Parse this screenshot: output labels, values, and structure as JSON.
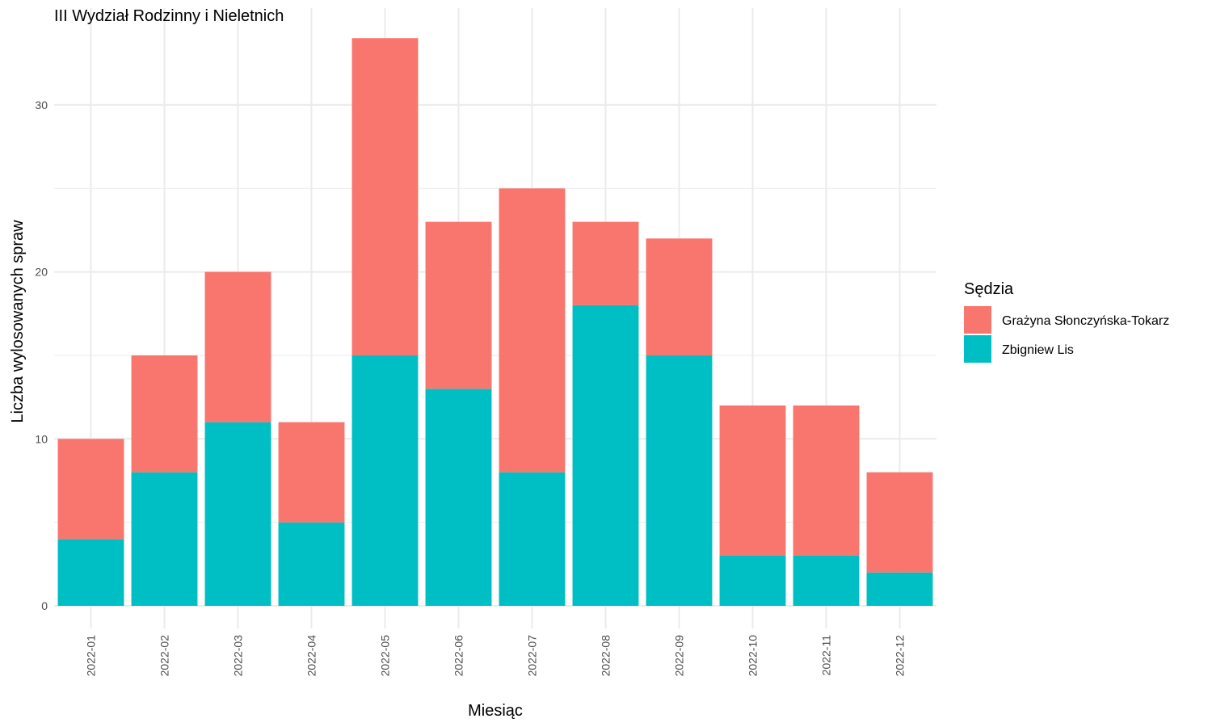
{
  "chart_data": {
    "type": "bar",
    "stacked": true,
    "title": "III Wydział Rodzinny i Nieletnich",
    "xlabel": "Miesiąc",
    "ylabel": "Liczba wylosowanych spraw",
    "categories": [
      "2022-01",
      "2022-02",
      "2022-03",
      "2022-04",
      "2022-05",
      "2022-06",
      "2022-07",
      "2022-08",
      "2022-09",
      "2022-10",
      "2022-11",
      "2022-12"
    ],
    "series": [
      {
        "name": "Zbigniew Lis",
        "color": "#00BFC4",
        "values": [
          4,
          8,
          11,
          5,
          15,
          13,
          8,
          18,
          15,
          3,
          3,
          2
        ]
      },
      {
        "name": "Grażyna Słonczyńska-Tokarz",
        "color": "#F8766D",
        "values": [
          6,
          7,
          9,
          6,
          19,
          10,
          17,
          5,
          7,
          9,
          9,
          6
        ]
      }
    ],
    "ylim": [
      0,
      34
    ],
    "yticks": [
      0,
      10,
      20,
      30
    ],
    "grid": true,
    "legend": {
      "title": "Sędzia",
      "position": "right",
      "order": [
        "Grażyna Słonczyńska-Tokarz",
        "Zbigniew Lis"
      ]
    }
  }
}
